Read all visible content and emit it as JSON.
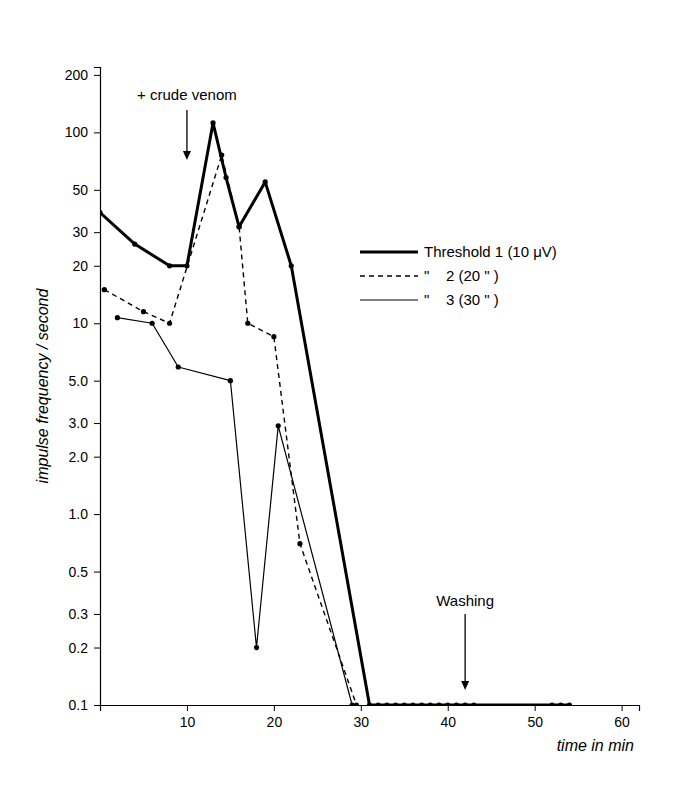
{
  "chart_data": {
    "type": "line",
    "x_label": "time in min",
    "y_label": "impulse frequency / second",
    "log": "y",
    "grid": false,
    "xlim": [
      0,
      62
    ],
    "ylim": [
      0.1,
      220
    ],
    "xticks": [
      10,
      20,
      30,
      40,
      50,
      60
    ],
    "yticks": [
      0.1,
      0.2,
      0.3,
      0.5,
      {
        "value": 1,
        "label": "1.0"
      },
      {
        "value": 2,
        "label": "2.0"
      },
      {
        "value": 3,
        "label": "3.0"
      },
      {
        "value": 5,
        "label": "5.0"
      },
      10,
      20,
      30,
      50,
      100,
      200
    ],
    "annotations": [
      {
        "text": "+ crude venom",
        "x": 10
      },
      {
        "text": "Washing",
        "x": 42
      }
    ],
    "series": [
      {
        "name": "Threshold 1 (10 μV)",
        "color": "#000000",
        "line_style": "thick",
        "marker": "circle",
        "x": [
          0,
          4,
          8,
          10,
          13,
          14.5,
          16,
          19,
          22,
          31,
          32,
          33,
          34,
          35,
          36,
          37,
          38,
          39,
          40,
          41,
          42,
          43,
          52,
          53,
          54
        ],
        "values": [
          38,
          26,
          20,
          20,
          112,
          58,
          32,
          55,
          20,
          0.1,
          0.1,
          0.1,
          0.1,
          0.1,
          0.1,
          0.1,
          0.1,
          0.1,
          0.1,
          0.1,
          0.1,
          0.1,
          0.1,
          0.1,
          0.1
        ]
      },
      {
        "name": "\"    2 (20 \" )",
        "color": "#000000",
        "line_style": "dashed",
        "marker": "circle",
        "x": [
          0.5,
          5,
          8,
          14,
          16,
          17,
          20,
          23,
          29.5
        ],
        "values": [
          15,
          11.5,
          10,
          76,
          32,
          10,
          8.5,
          0.7,
          0.1
        ]
      },
      {
        "name": "\"    3 (30 \" )",
        "color": "#000000",
        "line_style": "thin",
        "marker": "circle",
        "x": [
          2,
          6,
          9,
          15,
          18,
          20.5,
          29
        ],
        "values": [
          10.7,
          10,
          5.9,
          5,
          0.2,
          2.9,
          0.1
        ]
      }
    ]
  }
}
